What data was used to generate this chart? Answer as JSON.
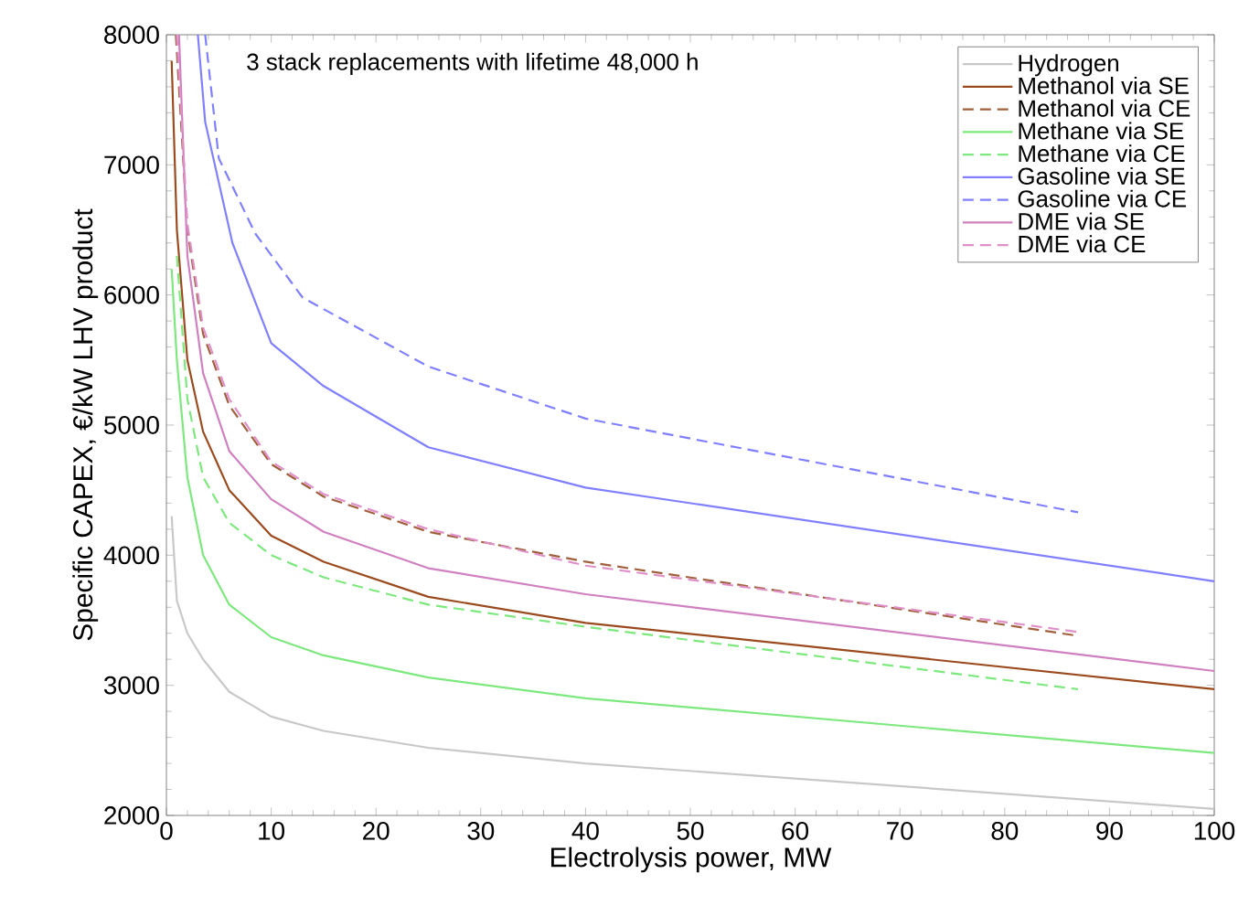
{
  "chart_data": {
    "type": "line",
    "xlabel": "Electrolysis power, MW",
    "ylabel": "Specific CAPEX, €/kW LHV product",
    "annotations": [
      "3 stack replacements with lifetime 48,000 h"
    ],
    "xlim": [
      0,
      100
    ],
    "ylim": [
      2000,
      8000
    ],
    "xticks": [
      0,
      10,
      20,
      30,
      40,
      50,
      60,
      70,
      80,
      90,
      100
    ],
    "yticks": [
      2000,
      3000,
      4000,
      5000,
      6000,
      7000,
      8000
    ],
    "grid": false,
    "legend": "top right",
    "marker": "none",
    "series": [
      {
        "name": "Hydrogen",
        "color": "#c8c8c8",
        "line_style": "solid",
        "x": [
          0.5,
          1,
          2,
          3.5,
          6,
          10,
          15,
          25,
          40,
          100
        ],
        "values": [
          4300,
          3650,
          3400,
          3200,
          2950,
          2760,
          2650,
          2520,
          2400,
          2050
        ]
      },
      {
        "name": "Methanol via SE",
        "color": "#9b4a1e",
        "line_style": "solid",
        "x": [
          0.5,
          1,
          2,
          3.5,
          6,
          10,
          15,
          25,
          40,
          100
        ],
        "values": [
          7800,
          6500,
          5500,
          4950,
          4500,
          4150,
          3950,
          3680,
          3480,
          2970
        ]
      },
      {
        "name": "Methanol via CE",
        "color": "#a0603c",
        "line_style": "dashed",
        "x": [
          0.9,
          2,
          3.5,
          6,
          10,
          15,
          25,
          40,
          87
        ],
        "values": [
          8000,
          6500,
          5700,
          5150,
          4700,
          4450,
          4180,
          3950,
          3380
        ]
      },
      {
        "name": "Methane via SE",
        "color": "#7de87d",
        "line_style": "solid",
        "x": [
          0.5,
          1,
          2,
          3.5,
          6,
          10,
          15,
          25,
          40,
          100
        ],
        "values": [
          6200,
          5500,
          4600,
          4000,
          3620,
          3370,
          3230,
          3060,
          2900,
          2480
        ]
      },
      {
        "name": "Methane via CE",
        "color": "#7de87d",
        "line_style": "dashed",
        "x": [
          1,
          2,
          3.5,
          6,
          10,
          15,
          25,
          40,
          87
        ],
        "values": [
          6300,
          5200,
          4600,
          4250,
          4000,
          3830,
          3620,
          3450,
          2970
        ]
      },
      {
        "name": "Gasoline via SE",
        "color": "#7f7fff",
        "line_style": "solid",
        "x": [
          3,
          3.7,
          6.3,
          10,
          15,
          25,
          40,
          100
        ],
        "values": [
          8000,
          7330,
          6400,
          5630,
          5300,
          4830,
          4520,
          3800
        ]
      },
      {
        "name": "Gasoline via CE",
        "color": "#7f7fff",
        "line_style": "dashed",
        "x": [
          3.7,
          5,
          8.5,
          13,
          25,
          40,
          87
        ],
        "values": [
          8000,
          7050,
          6470,
          5980,
          5450,
          5050,
          4330
        ]
      },
      {
        "name": "DME via SE",
        "color": "#d080c0",
        "line_style": "solid",
        "x": [
          1.2,
          2,
          3.5,
          6,
          10,
          15,
          25,
          40,
          100
        ],
        "values": [
          8000,
          6300,
          5400,
          4800,
          4430,
          4180,
          3900,
          3700,
          3110
        ]
      },
      {
        "name": "DME via CE",
        "color": "#e090c8",
        "line_style": "dashed",
        "x": [
          1,
          2,
          3.5,
          6,
          10,
          15,
          25,
          40,
          87
        ],
        "values": [
          8000,
          6550,
          5750,
          5200,
          4720,
          4470,
          4200,
          3920,
          3410
        ]
      }
    ]
  }
}
